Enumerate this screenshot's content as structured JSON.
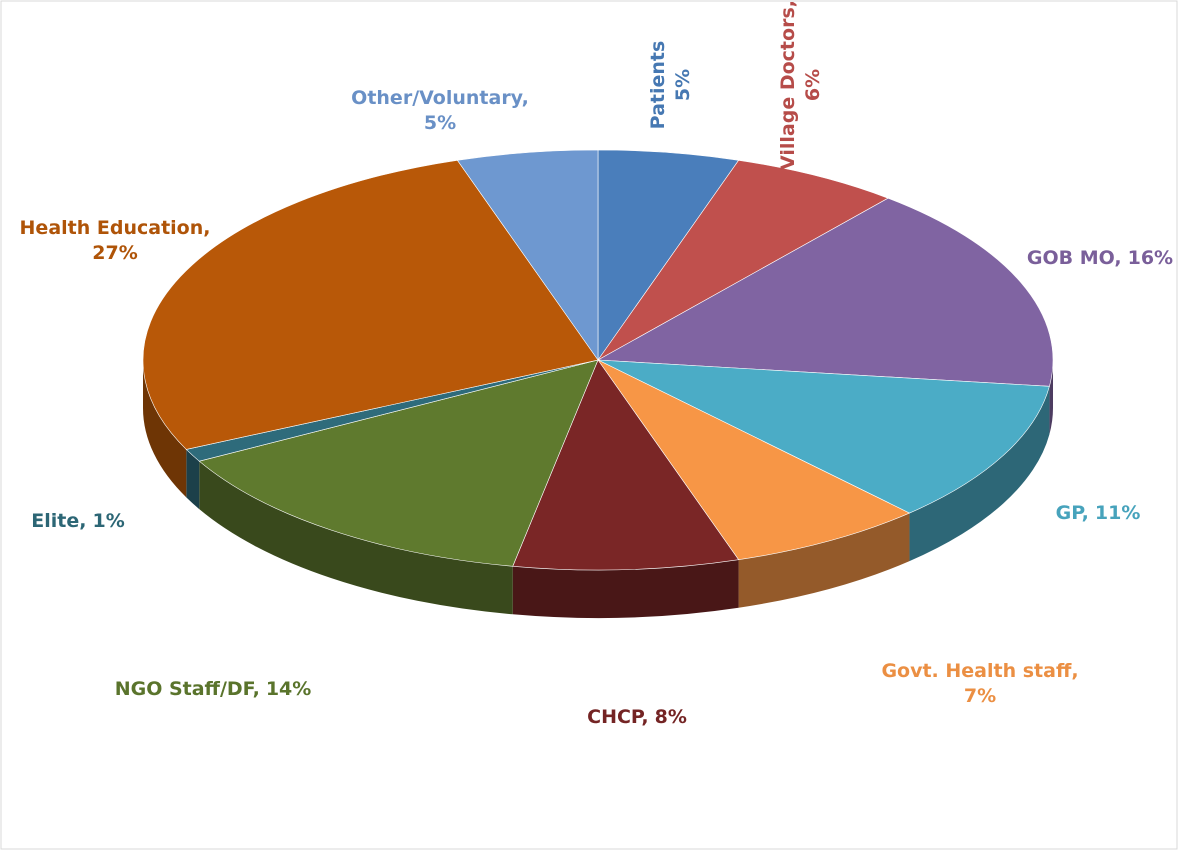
{
  "chart_data": {
    "type": "pie3d",
    "categories": [
      "Patients",
      "Village Doctors,",
      "GOB MO,",
      "GP,",
      "Govt. Health staff,",
      "CHCP,",
      "NGO Staff/DF,",
      "Elite,",
      "Health Education,",
      "Other/Voluntary,"
    ],
    "values": [
      5,
      6,
      16,
      11,
      7,
      8,
      14,
      1,
      27,
      5
    ],
    "value_labels": [
      "5%",
      "6%",
      "16%",
      "11%",
      "7%",
      "8%",
      "14%",
      "1%",
      "27%",
      "5%"
    ],
    "colors": [
      "#4a7ebb",
      "#c0504d",
      "#8064a2",
      "#4bacc6",
      "#f79646",
      "#7a2626",
      "#5f7a2e",
      "#2e6b7b",
      "#b85808",
      "#6e98d0"
    ]
  }
}
